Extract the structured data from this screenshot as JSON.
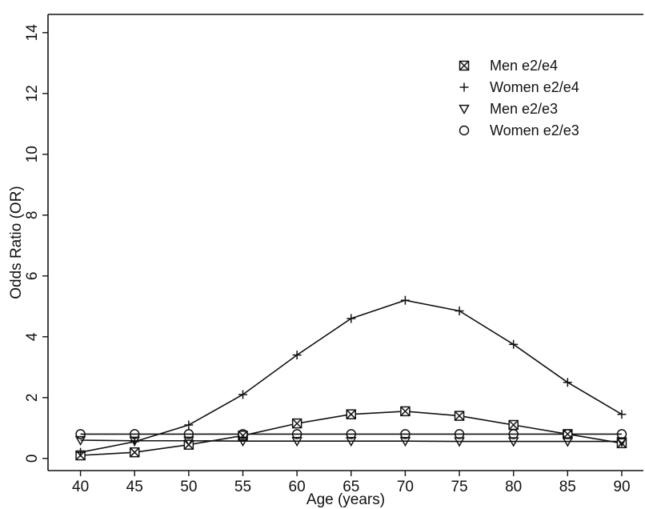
{
  "chart_data": {
    "type": "line",
    "xlabel": "Age (years)",
    "ylabel": "Odds Ratio (OR)",
    "xlim": [
      37,
      92
    ],
    "ylim": [
      -0.4,
      14.6
    ],
    "x_ticks": [
      40,
      45,
      50,
      55,
      60,
      65,
      70,
      75,
      80,
      85,
      90
    ],
    "y_ticks": [
      0,
      2,
      4,
      6,
      8,
      10,
      12,
      14
    ],
    "legend_position": "top-right",
    "x": [
      40,
      45,
      50,
      55,
      60,
      65,
      70,
      75,
      80,
      85,
      90
    ],
    "series": [
      {
        "name": "Men e2/e4",
        "marker": "crossed-square",
        "values": [
          0.1,
          0.2,
          0.45,
          0.75,
          1.15,
          1.45,
          1.55,
          1.4,
          1.1,
          0.8,
          0.5
        ]
      },
      {
        "name": "Women e2/e4",
        "marker": "plus",
        "values": [
          0.2,
          0.55,
          1.1,
          2.1,
          3.4,
          4.6,
          5.2,
          4.85,
          3.75,
          2.5,
          1.45
        ]
      },
      {
        "name": "Men e2/e3",
        "marker": "triangle-down",
        "values": [
          0.6,
          0.58,
          0.58,
          0.57,
          0.57,
          0.57,
          0.57,
          0.56,
          0.56,
          0.56,
          0.56
        ]
      },
      {
        "name": "Women e2/e3",
        "marker": "circle",
        "values": [
          0.8,
          0.8,
          0.8,
          0.8,
          0.8,
          0.8,
          0.8,
          0.8,
          0.8,
          0.8,
          0.8
        ]
      }
    ]
  }
}
